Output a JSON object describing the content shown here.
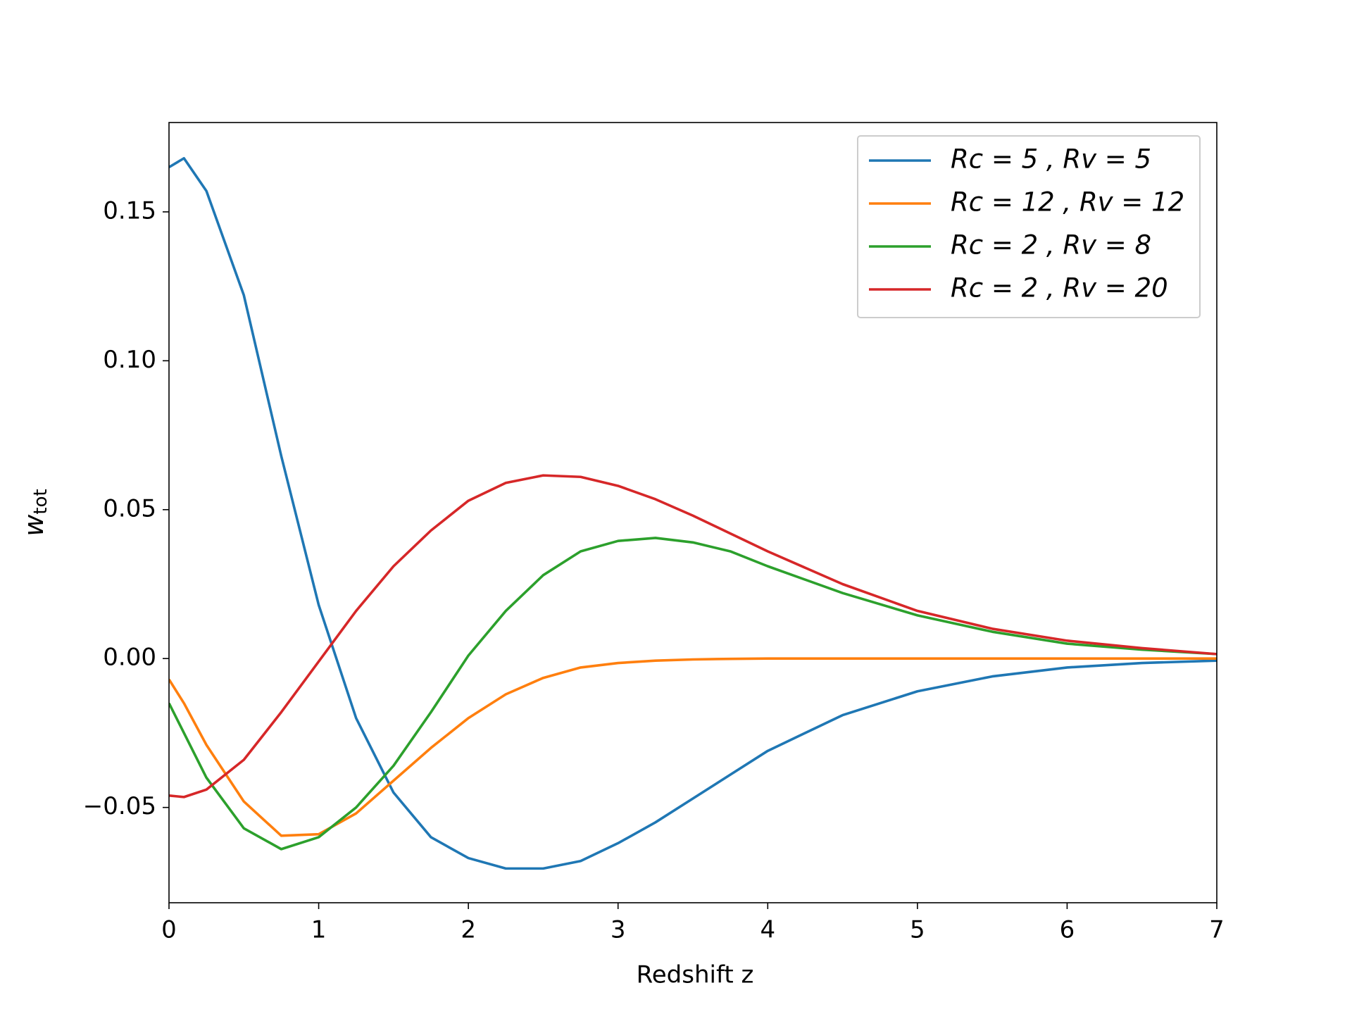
{
  "chart_data": {
    "type": "line",
    "x_label": "Redshift z",
    "y_label": "w",
    "y_label_sub": "tot",
    "x": [
      0,
      0.1,
      0.25,
      0.5,
      0.75,
      1,
      1.25,
      1.5,
      1.75,
      2,
      2.25,
      2.5,
      2.75,
      3,
      3.25,
      3.5,
      3.75,
      4,
      4.5,
      5,
      5.5,
      6,
      6.5,
      7
    ],
    "series": [
      {
        "name": "Rc = 5 , Rv = 5",
        "color": "#1f77b4",
        "values": [
          0.165,
          0.168,
          0.157,
          0.122,
          0.068,
          0.018,
          -0.02,
          -0.045,
          -0.06,
          -0.067,
          -0.0705,
          -0.0705,
          -0.068,
          -0.062,
          -0.055,
          -0.047,
          -0.039,
          -0.031,
          -0.019,
          -0.011,
          -0.006,
          -0.003,
          -0.0015,
          -0.0007
        ]
      },
      {
        "name": "Rc = 12 , Rv = 12",
        "color": "#ff7f0e",
        "values": [
          -0.007,
          -0.015,
          -0.029,
          -0.048,
          -0.0595,
          -0.059,
          -0.052,
          -0.041,
          -0.03,
          -0.02,
          -0.012,
          -0.0065,
          -0.003,
          -0.0015,
          -0.0007,
          -0.0003,
          -0.0001,
          0,
          0,
          0,
          0,
          0,
          0,
          0
        ]
      },
      {
        "name": "Rc = 2 , Rv = 8",
        "color": "#2ca02c",
        "values": [
          -0.015,
          -0.025,
          -0.04,
          -0.057,
          -0.064,
          -0.06,
          -0.05,
          -0.036,
          -0.018,
          0.001,
          0.016,
          0.028,
          0.036,
          0.0395,
          0.0405,
          0.039,
          0.036,
          0.031,
          0.022,
          0.0145,
          0.009,
          0.005,
          0.003,
          0.0015
        ]
      },
      {
        "name": "Rc = 2 , Rv = 20",
        "color": "#d62728",
        "values": [
          -0.046,
          -0.0465,
          -0.044,
          -0.034,
          -0.018,
          -0.001,
          0.016,
          0.031,
          0.043,
          0.053,
          0.059,
          0.0615,
          0.061,
          0.058,
          0.0535,
          0.048,
          0.042,
          0.036,
          0.025,
          0.016,
          0.01,
          0.006,
          0.0035,
          0.0015
        ]
      }
    ],
    "xlim": [
      0,
      7
    ],
    "ylim": [
      -0.082,
      0.18
    ],
    "xticks": [
      0,
      1,
      2,
      3,
      4,
      5,
      6,
      7
    ],
    "yticks": [
      {
        "value": -0.05,
        "label": "−0.05"
      },
      {
        "value": 0,
        "label": "0.00"
      },
      {
        "value": 0.05,
        "label": "0.05"
      },
      {
        "value": 0.1,
        "label": "0.10"
      },
      {
        "value": 0.15,
        "label": "0.15"
      }
    ],
    "grid": false,
    "legend": "upper right"
  }
}
